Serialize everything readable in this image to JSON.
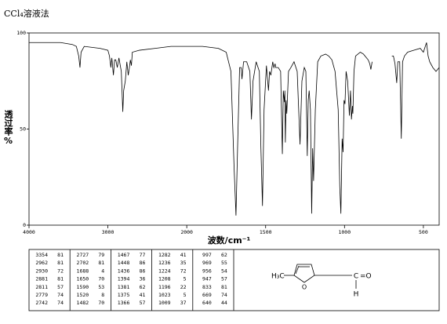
{
  "chart_data": {
    "type": "line",
    "title": "CCl₄溶液法",
    "x_label": "波数/cm⁻¹",
    "y_label": "透过率%",
    "xscale": "piecewise",
    "xlim": [
      4000,
      400
    ],
    "xticks": [
      4000,
      3000,
      2000,
      1500,
      1000,
      500
    ],
    "ylim": [
      0,
      100
    ],
    "yticks": [
      0,
      50,
      100
    ],
    "color": "#000000",
    "x": [
      4000,
      3800,
      3600,
      3450,
      3400,
      3370,
      3354,
      3340,
      3300,
      3100,
      3000,
      2980,
      2962,
      2950,
      2930,
      2915,
      2900,
      2881,
      2860,
      2830,
      2811,
      2800,
      2779,
      2760,
      2742,
      2727,
      2715,
      2702,
      2690,
      2600,
      2400,
      2200,
      2000,
      1900,
      1800,
      1750,
      1720,
      1700,
      1688,
      1678,
      1665,
      1655,
      1650,
      1640,
      1620,
      1600,
      1590,
      1580,
      1560,
      1540,
      1530,
      1520,
      1510,
      1495,
      1482,
      1475,
      1467,
      1455,
      1448,
      1440,
      1436,
      1420,
      1405,
      1394,
      1388,
      1381,
      1378,
      1375,
      1370,
      1366,
      1355,
      1340,
      1320,
      1300,
      1282,
      1270,
      1255,
      1245,
      1236,
      1230,
      1224,
      1216,
      1208,
      1202,
      1196,
      1185,
      1170,
      1150,
      1120,
      1100,
      1080,
      1060,
      1040,
      1030,
      1023,
      1015,
      1009,
      1003,
      997,
      990,
      980,
      969,
      962,
      956,
      950,
      947,
      940,
      930,
      900,
      880,
      860,
      850,
      840,
      833,
      825,
      760,
      700,
      690,
      680,
      669,
      662,
      650,
      640,
      632,
      620,
      600,
      560,
      520,
      500,
      480,
      470,
      460,
      440,
      420,
      400
    ],
    "values": [
      95,
      95,
      95,
      94,
      93,
      88,
      82,
      90,
      93,
      92,
      91,
      88,
      82,
      87,
      78,
      86,
      86,
      82,
      87,
      80,
      59,
      70,
      75,
      85,
      78,
      82,
      86,
      83,
      90,
      91,
      92,
      93,
      93,
      93,
      92,
      90,
      80,
      30,
      5,
      40,
      82,
      82,
      76,
      85,
      85,
      80,
      55,
      75,
      85,
      80,
      40,
      10,
      60,
      83,
      70,
      80,
      78,
      85,
      82,
      84,
      82,
      82,
      80,
      37,
      70,
      64,
      70,
      43,
      65,
      58,
      80,
      82,
      85,
      80,
      42,
      75,
      82,
      80,
      36,
      65,
      70,
      60,
      6,
      40,
      23,
      60,
      85,
      88,
      89,
      88,
      86,
      80,
      60,
      20,
      6,
      45,
      38,
      65,
      63,
      80,
      75,
      57,
      70,
      55,
      62,
      58,
      80,
      88,
      90,
      89,
      87,
      86,
      84,
      81,
      85,
      null,
      88,
      88,
      84,
      74,
      85,
      85,
      45,
      85,
      88,
      90,
      91,
      92,
      90,
      95,
      88,
      85,
      82,
      80,
      82
    ]
  },
  "peak_table": {
    "columns": [
      [
        [
          3354,
          81
        ],
        [
          2962,
          81
        ],
        [
          2930,
          72
        ],
        [
          2881,
          81
        ],
        [
          2811,
          57
        ],
        [
          2779,
          74
        ],
        [
          2742,
          74
        ]
      ],
      [
        [
          2727,
          79
        ],
        [
          2702,
          81
        ],
        [
          1688,
          4
        ],
        [
          1650,
          70
        ],
        [
          1590,
          53
        ],
        [
          1520,
          8
        ],
        [
          1482,
          70
        ]
      ],
      [
        [
          1467,
          77
        ],
        [
          1448,
          86
        ],
        [
          1436,
          86
        ],
        [
          1394,
          36
        ],
        [
          1381,
          62
        ],
        [
          1375,
          41
        ],
        [
          1366,
          57
        ]
      ],
      [
        [
          1282,
          41
        ],
        [
          1236,
          35
        ],
        [
          1224,
          72
        ],
        [
          1208,
          5
        ],
        [
          1196,
          22
        ],
        [
          1023,
          5
        ],
        [
          1009,
          37
        ]
      ],
      [
        [
          997,
          62
        ],
        [
          969,
          55
        ],
        [
          956,
          54
        ],
        [
          947,
          57
        ],
        [
          833,
          81
        ],
        [
          669,
          74
        ],
        [
          640,
          44
        ]
      ]
    ]
  },
  "structure": {
    "methyl": "H₃C",
    "ring_oxygen": "O",
    "carbon": "C",
    "carbonyl": "=O",
    "hydrogen": "H"
  }
}
